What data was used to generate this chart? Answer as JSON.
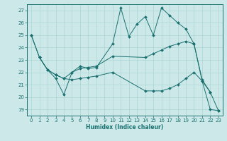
{
  "xlabel": "Humidex (Indice chaleur)",
  "xlim": [
    -0.5,
    23.5
  ],
  "ylim": [
    18.5,
    27.5
  ],
  "yticks": [
    19,
    20,
    21,
    22,
    23,
    24,
    25,
    26,
    27
  ],
  "xticks": [
    0,
    1,
    2,
    3,
    4,
    5,
    6,
    7,
    8,
    9,
    10,
    11,
    12,
    13,
    14,
    15,
    16,
    17,
    18,
    19,
    20,
    21,
    22,
    23
  ],
  "bg_color": "#cce8e8",
  "line_color": "#1a7070",
  "grid_color": "#aad4d4",
  "lines": [
    {
      "x": [
        0,
        1,
        2,
        3,
        4,
        5,
        6,
        7,
        8,
        10,
        11,
        12,
        13,
        14,
        15,
        16,
        17,
        18,
        19,
        20,
        21,
        22
      ],
      "y": [
        25.0,
        23.2,
        22.2,
        21.5,
        20.2,
        22.0,
        22.5,
        22.3,
        22.4,
        24.3,
        27.2,
        24.9,
        25.9,
        26.5,
        25.0,
        27.2,
        26.6,
        26.0,
        25.5,
        24.3,
        21.3,
        20.4
      ]
    },
    {
      "x": [
        1,
        2,
        3,
        4,
        5,
        6,
        7,
        8,
        10,
        14,
        15,
        16,
        17,
        18,
        19,
        20,
        21,
        22,
        23
      ],
      "y": [
        23.2,
        22.2,
        21.8,
        21.5,
        22.0,
        22.3,
        22.4,
        22.5,
        23.3,
        23.2,
        23.5,
        23.8,
        24.1,
        24.3,
        24.5,
        24.3,
        21.4,
        20.4,
        18.9
      ]
    },
    {
      "x": [
        0,
        1,
        2,
        3,
        4,
        5,
        6,
        7,
        8,
        10,
        14,
        15,
        16,
        17,
        18,
        19,
        20,
        21,
        22,
        23
      ],
      "y": [
        25.0,
        23.2,
        22.2,
        21.8,
        21.5,
        21.4,
        21.5,
        21.6,
        21.7,
        22.0,
        20.5,
        20.5,
        20.5,
        20.7,
        21.0,
        21.5,
        22.0,
        21.3,
        19.0,
        18.9
      ]
    }
  ]
}
